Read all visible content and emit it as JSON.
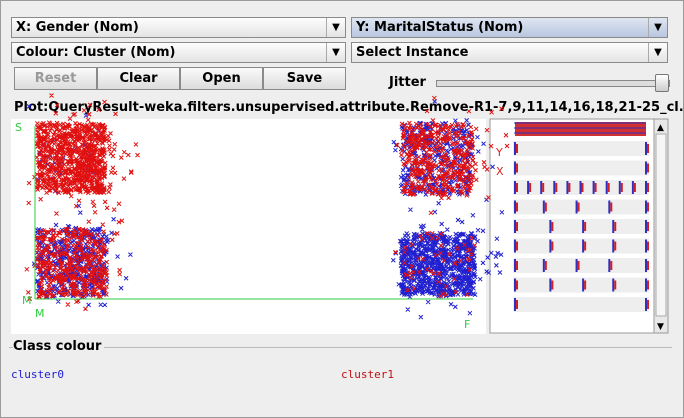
{
  "controls": {
    "x_axis": "X: Gender (Nom)",
    "y_axis": "Y: MaritalStatus (Nom)",
    "colour": "Colour: Cluster (Nom)",
    "instance": "Select Instance",
    "buttons": [
      "Reset",
      "Clear",
      "Open",
      "Save"
    ],
    "jitter": "Jitter"
  },
  "plot": {
    "title": "Plot:QueryResult-weka.filters.unsupervised.attribute.Remove-R1-7,9,11,14,16,18,21-25_cl...",
    "y_top": "S",
    "y_bottom": "M",
    "x_left": "M",
    "x_right": "F",
    "attr_y": "Y",
    "attr_x": "X"
  },
  "class_colour": {
    "title": "Class colour",
    "labels": [
      "cluster0",
      "cluster1"
    ]
  }
}
